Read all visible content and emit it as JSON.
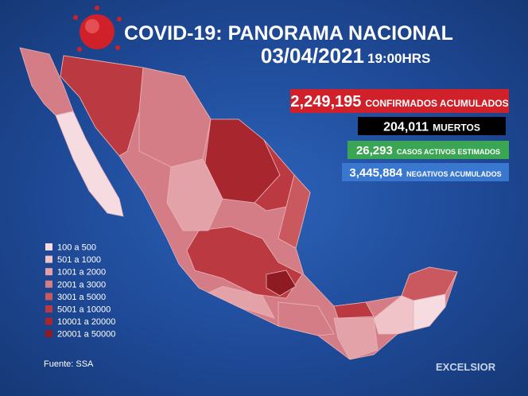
{
  "header": {
    "title": "COVID-19: PANORAMA NACIONAL",
    "date": "03/04/2021",
    "time": "19:00HRS"
  },
  "stats": [
    {
      "value": "2,249,195",
      "label": "CONFIRMADOS ACUMULADOS",
      "color": "#d0202a"
    },
    {
      "value": "204,011",
      "label": "MUERTOS",
      "color": "#000000"
    },
    {
      "value": "26,293",
      "label": "CASOS ACTIVOS ESTIMADOS",
      "color": "#3aa552"
    },
    {
      "value": "3,445,884",
      "label": "NEGATIVOS ACUMULADOS",
      "color": "#3a78d0"
    }
  ],
  "legend": [
    {
      "label": "100 a 500",
      "color": "#f6dce0"
    },
    {
      "label": "501 a 1000",
      "color": "#efc3c8"
    },
    {
      "label": "1001 a 2000",
      "color": "#e3a1a8"
    },
    {
      "label": "2001 a 3000",
      "color": "#d57d86"
    },
    {
      "label": "3001 a 5000",
      "color": "#c9595f"
    },
    {
      "label": "5001 a 10000",
      "color": "#bb3a41"
    },
    {
      "label": "10001 a 20000",
      "color": "#a8262d"
    },
    {
      "label": "20001 a 50000",
      "color": "#8e1a22"
    }
  ],
  "source": "Fuente: SSA",
  "brand": "EXCELSIOR"
}
